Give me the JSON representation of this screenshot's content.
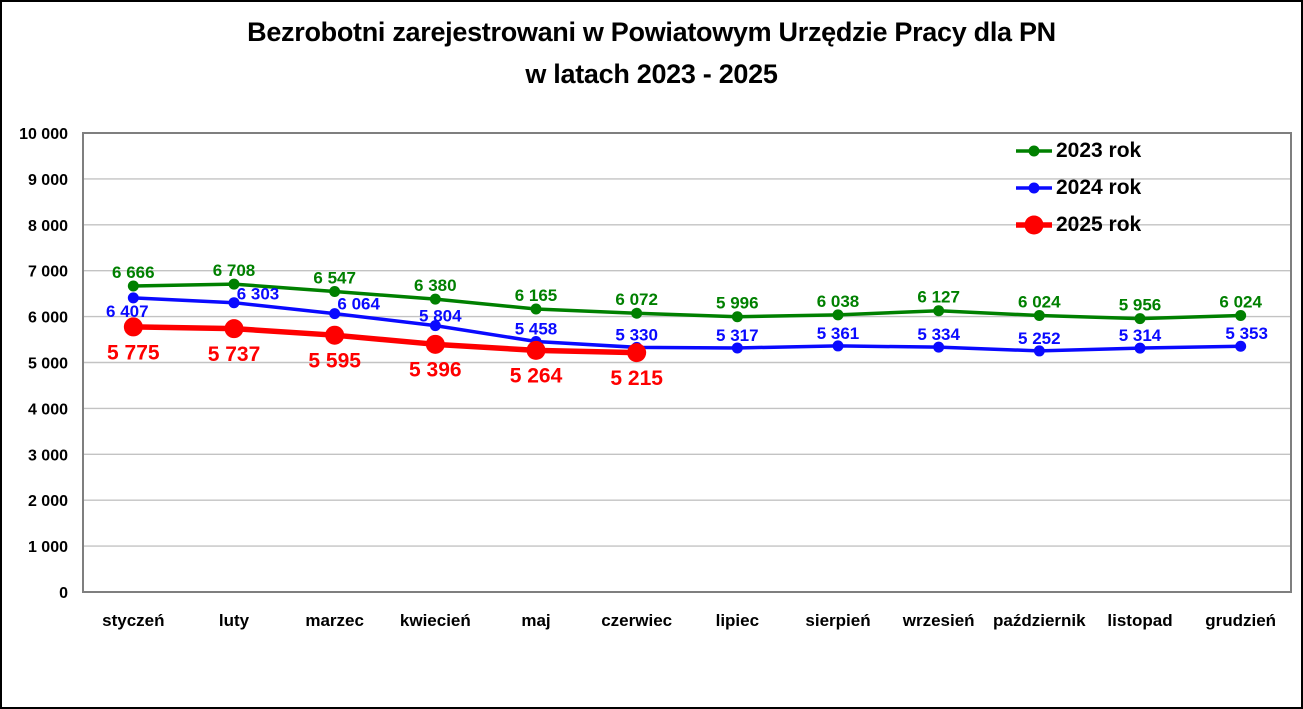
{
  "title_line1": "Bezrobotni zarejestrowani w Powiatowym Urzędzie Pracy dla PN",
  "title_line2": "w latach 2023 - 2025",
  "chart_data": {
    "type": "line",
    "title": "Bezrobotni zarejestrowani w Powiatowym Urzędzie Pracy dla PN w latach 2023 - 2025",
    "categories": [
      "styczeń",
      "luty",
      "marzec",
      "kwiecień",
      "maj",
      "czerwiec",
      "lipiec",
      "sierpień",
      "wrzesień",
      "październik",
      "listopad",
      "grudzień"
    ],
    "series": [
      {
        "name": "2023 rok",
        "color": "#008000",
        "values": [
          6666,
          6708,
          6547,
          6380,
          6165,
          6072,
          5996,
          6038,
          6127,
          6024,
          5956,
          6024
        ]
      },
      {
        "name": "2024 rok",
        "color": "#0a0aff",
        "values": [
          6407,
          6303,
          6064,
          5804,
          5458,
          5330,
          5317,
          5361,
          5334,
          5252,
          5314,
          5353
        ]
      },
      {
        "name": "2025 rok",
        "color": "#fe0000",
        "values": [
          5775,
          5737,
          5595,
          5396,
          5264,
          5215
        ]
      }
    ],
    "xlabel": "",
    "ylabel": "",
    "ylim": [
      0,
      10000
    ],
    "y_step": 1000,
    "y_tick_labels": [
      "0",
      "1 000",
      "2 000",
      "3 000",
      "4 000",
      "5 000",
      "6 000",
      "7 000",
      "8 000",
      "9 000",
      "10 000"
    ],
    "grid": true,
    "data_labels": true,
    "number_format": "space-thousands",
    "legend_position": "top-right",
    "grid_color": "#c3c3c3",
    "border_color": "#7f7f7f",
    "label_text_color": "#000000",
    "background_color": "#ffffff"
  }
}
